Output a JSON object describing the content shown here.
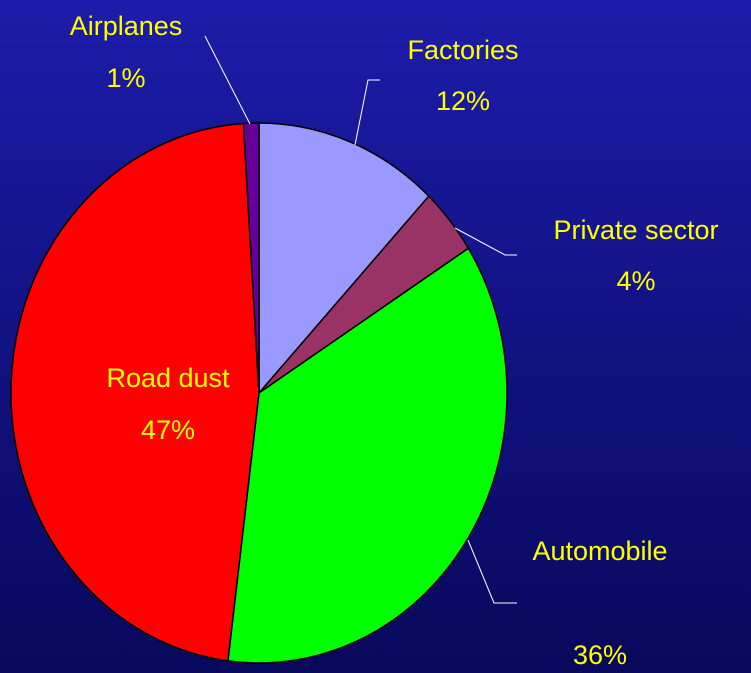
{
  "chart_data": {
    "type": "pie",
    "categories": [
      "Factories",
      "Private sector",
      "Automobile",
      "Road dust",
      "Airplanes"
    ],
    "values": [
      12,
      4,
      36,
      47,
      1
    ],
    "value_labels": [
      "12%",
      "4%",
      "36%",
      "47%",
      "1%"
    ],
    "colors": [
      "#9999ff",
      "#993366",
      "#00ff00",
      "#ff0000",
      "#660099"
    ]
  }
}
